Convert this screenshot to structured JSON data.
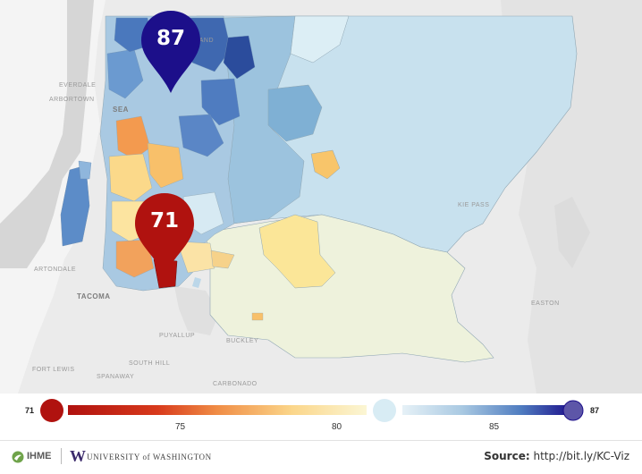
{
  "map": {
    "place_labels": [
      {
        "key": "kirkland",
        "text": "KIRKLAND"
      },
      {
        "key": "seattle",
        "text": "SEA"
      },
      {
        "key": "everdale",
        "text": "EVERDALE"
      },
      {
        "key": "arbortown",
        "text": "ARBORTOWN"
      },
      {
        "key": "lakewood",
        "text": "ARTONDALE"
      },
      {
        "key": "tacoma",
        "text": "TACOMA"
      },
      {
        "key": "puyallup",
        "text": "PUYALLUP"
      },
      {
        "key": "buckley",
        "text": "BUCKLEY"
      },
      {
        "key": "south_hill",
        "text": "SOUTH HILL"
      },
      {
        "key": "fort_lewis",
        "text": "FORT LEWIS"
      },
      {
        "key": "spanaway",
        "text": "SPANAWAY"
      },
      {
        "key": "carbonado",
        "text": "CARBONADO"
      },
      {
        "key": "easton",
        "text": "EASTON"
      },
      {
        "key": "kie_pass",
        "text": "KIE PASS"
      }
    ]
  },
  "pins": {
    "high": {
      "value": "87",
      "color": "#1c0f8a"
    },
    "low": {
      "value": "71",
      "color": "#b0120f"
    }
  },
  "legend": {
    "min_label": "71",
    "max_label": "87",
    "ticks": [
      "75",
      "80",
      "85"
    ],
    "scale_min": 71,
    "scale_max": 87,
    "tick_values": [
      75,
      80,
      85
    ],
    "low_color": "#b0120f",
    "mid_color": "#d8ecf4",
    "high_color": "#1c0f8a"
  },
  "footer": {
    "ihme": "IHME",
    "uw_mark": "W",
    "uw_name": "UNIVERSITY of WASHINGTON",
    "source_label": "Source:",
    "source_url": "http://bit.ly/KC-Viz"
  }
}
